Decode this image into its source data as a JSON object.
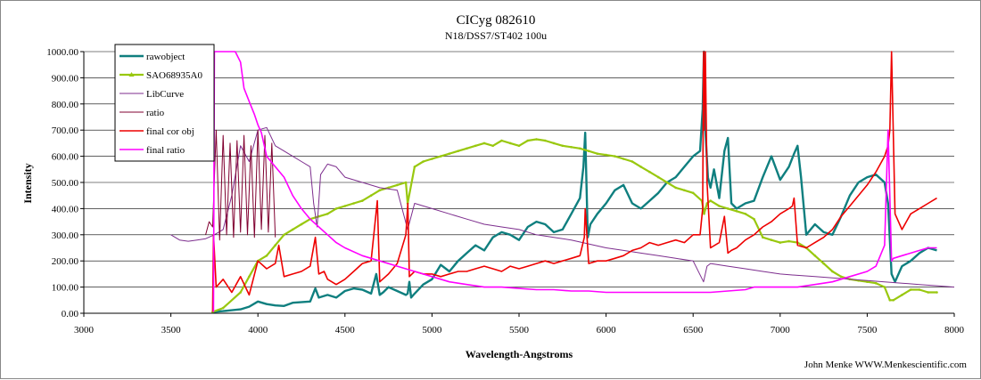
{
  "chart_data": {
    "type": "line",
    "title": "CICyg 082610",
    "subtitle": "N18/DSS7/ST402 100u",
    "xlabel": "Wavelength-Angstroms",
    "ylabel": "Intensity",
    "xlim": [
      3000,
      8000
    ],
    "ylim": [
      0,
      1000
    ],
    "x_ticks": [
      "3000",
      "3500",
      "4000",
      "4500",
      "5000",
      "5500",
      "6000",
      "6500",
      "7000",
      "7500",
      "8000"
    ],
    "y_ticks": [
      "0.00",
      "100.00",
      "200.00",
      "300.00",
      "400.00",
      "500.00",
      "600.00",
      "700.00",
      "800.00",
      "900.00",
      "1000.00"
    ],
    "grid": "horizontal",
    "legend_position": "top-left",
    "credit": "John Menke  WWW.Menkescientific.com",
    "series": [
      {
        "name": "rawobject",
        "color": "#0f7f7f",
        "x": [
          3740,
          3800,
          3900,
          3950,
          4000,
          4050,
          4100,
          4150,
          4200,
          4300,
          4330,
          4350,
          4400,
          4450,
          4500,
          4550,
          4600,
          4650,
          4680,
          4700,
          4720,
          4750,
          4800,
          4850,
          4860,
          4870,
          4880,
          4900,
          4950,
          5000,
          5050,
          5100,
          5150,
          5200,
          5250,
          5300,
          5350,
          5400,
          5450,
          5500,
          5550,
          5600,
          5650,
          5700,
          5750,
          5800,
          5850,
          5870,
          5880,
          5895,
          5910,
          5950,
          6000,
          6050,
          6100,
          6150,
          6200,
          6250,
          6300,
          6350,
          6400,
          6450,
          6500,
          6540,
          6555,
          6562,
          6570,
          6585,
          6600,
          6620,
          6650,
          6680,
          6700,
          6720,
          6750,
          6800,
          6850,
          6900,
          6950,
          7000,
          7050,
          7080,
          7100,
          7120,
          7150,
          7200,
          7250,
          7300,
          7350,
          7400,
          7450,
          7500,
          7550,
          7600,
          7620,
          7640,
          7660,
          7700,
          7750,
          7800,
          7850,
          7900
        ],
        "y": [
          5,
          8,
          15,
          25,
          45,
          35,
          30,
          28,
          40,
          45,
          95,
          60,
          70,
          60,
          85,
          95,
          90,
          75,
          150,
          70,
          80,
          100,
          85,
          70,
          75,
          120,
          60,
          75,
          110,
          130,
          185,
          160,
          200,
          230,
          260,
          240,
          290,
          310,
          300,
          280,
          330,
          350,
          340,
          310,
          320,
          380,
          440,
          560,
          690,
          290,
          340,
          380,
          420,
          470,
          490,
          420,
          400,
          430,
          460,
          500,
          520,
          560,
          600,
          620,
          780,
          1000,
          700,
          520,
          480,
          550,
          440,
          620,
          670,
          420,
          400,
          420,
          430,
          520,
          600,
          510,
          560,
          610,
          640,
          520,
          300,
          340,
          310,
          300,
          370,
          450,
          500,
          520,
          530,
          500,
          420,
          150,
          120,
          180,
          200,
          230,
          250,
          240
        ]
      },
      {
        "name": "SAO68935A0",
        "color": "#99c80f",
        "x": [
          3740,
          3800,
          3900,
          3950,
          4000,
          4050,
          4100,
          4150,
          4200,
          4250,
          4300,
          4350,
          4400,
          4450,
          4500,
          4550,
          4600,
          4650,
          4700,
          4750,
          4800,
          4850,
          4860,
          4900,
          4950,
          5000,
          5050,
          5100,
          5150,
          5200,
          5250,
          5300,
          5350,
          5400,
          5450,
          5500,
          5550,
          5600,
          5650,
          5700,
          5750,
          5800,
          5850,
          5900,
          5950,
          6000,
          6050,
          6100,
          6150,
          6200,
          6250,
          6300,
          6350,
          6400,
          6450,
          6500,
          6550,
          6563,
          6580,
          6600,
          6650,
          6700,
          6750,
          6800,
          6850,
          6900,
          6950,
          7000,
          7050,
          7100,
          7150,
          7200,
          7250,
          7300,
          7350,
          7400,
          7450,
          7500,
          7550,
          7600,
          7630,
          7650,
          7700,
          7750,
          7800,
          7850,
          7900
        ],
        "y": [
          5,
          20,
          80,
          140,
          200,
          220,
          260,
          300,
          320,
          340,
          360,
          370,
          380,
          400,
          410,
          420,
          430,
          450,
          470,
          480,
          490,
          500,
          420,
          560,
          580,
          590,
          600,
          610,
          620,
          630,
          640,
          650,
          640,
          660,
          650,
          640,
          660,
          665,
          660,
          650,
          640,
          635,
          630,
          620,
          610,
          605,
          600,
          590,
          580,
          560,
          540,
          520,
          500,
          480,
          470,
          460,
          430,
          380,
          420,
          430,
          410,
          400,
          390,
          380,
          360,
          290,
          280,
          270,
          275,
          270,
          250,
          220,
          190,
          160,
          140,
          130,
          125,
          120,
          115,
          100,
          50,
          50,
          70,
          90,
          90,
          80,
          80
        ]
      },
      {
        "name": "LibCurve",
        "color": "#7d2e8e",
        "x": [
          3500,
          3550,
          3600,
          3650,
          3700,
          3750,
          3800,
          3850,
          3900,
          3950,
          4000,
          4050,
          4100,
          4150,
          4200,
          4250,
          4300,
          4320,
          4340,
          4360,
          4400,
          4450,
          4500,
          4600,
          4700,
          4800,
          4860,
          4900,
          5000,
          5100,
          5200,
          5300,
          5400,
          5500,
          5600,
          5700,
          5800,
          5900,
          6000,
          6100,
          6200,
          6300,
          6400,
          6500,
          6560,
          6580,
          6600,
          6700,
          6800,
          6900,
          7000,
          7100,
          7200,
          7300,
          7400,
          7500,
          7600,
          7700,
          7800,
          7900,
          8000
        ],
        "y": [
          300,
          280,
          275,
          280,
          285,
          300,
          320,
          450,
          640,
          580,
          700,
          710,
          640,
          620,
          600,
          580,
          560,
          420,
          330,
          530,
          570,
          560,
          520,
          500,
          480,
          470,
          320,
          420,
          400,
          380,
          360,
          340,
          330,
          320,
          300,
          290,
          280,
          265,
          250,
          240,
          230,
          220,
          210,
          200,
          120,
          180,
          190,
          180,
          170,
          160,
          150,
          145,
          140,
          135,
          130,
          125,
          120,
          115,
          110,
          105,
          100
        ]
      },
      {
        "name": "ratio",
        "color": "#800030",
        "x": [
          3700,
          3720,
          3740,
          3760,
          3780,
          3800,
          3820,
          3840,
          3860,
          3880,
          3900,
          3920,
          3940,
          3960,
          3980,
          4000,
          4020,
          4040,
          4060,
          4080,
          4100
        ],
        "y": [
          300,
          350,
          330,
          700,
          280,
          680,
          300,
          650,
          290,
          660,
          310,
          680,
          300,
          640,
          290,
          700,
          320,
          680,
          310,
          650,
          290
        ]
      },
      {
        "name": "final cor obj",
        "color": "#ee0000",
        "x": [
          3740,
          3745,
          3760,
          3800,
          3850,
          3900,
          3950,
          4000,
          4050,
          4100,
          4120,
          4150,
          4200,
          4250,
          4300,
          4330,
          4350,
          4380,
          4400,
          4450,
          4500,
          4550,
          4600,
          4650,
          4686,
          4700,
          4750,
          4800,
          4850,
          4861,
          4870,
          4900,
          4950,
          5000,
          5050,
          5100,
          5150,
          5200,
          5250,
          5300,
          5350,
          5400,
          5450,
          5500,
          5550,
          5600,
          5650,
          5700,
          5750,
          5800,
          5850,
          5875,
          5880,
          5900,
          5950,
          6000,
          6050,
          6100,
          6150,
          6200,
          6250,
          6300,
          6350,
          6400,
          6450,
          6500,
          6540,
          6555,
          6560,
          6563,
          6570,
          6580,
          6600,
          6650,
          6680,
          6700,
          6720,
          6750,
          6800,
          6850,
          6900,
          6950,
          7000,
          7050,
          7070,
          7080,
          7100,
          7150,
          7200,
          7250,
          7300,
          7350,
          7400,
          7450,
          7500,
          7550,
          7600,
          7620,
          7630,
          7640,
          7660,
          7700,
          7750,
          7800,
          7850,
          7900
        ],
        "y": [
          5,
          300,
          100,
          130,
          80,
          140,
          70,
          200,
          170,
          190,
          260,
          140,
          150,
          160,
          180,
          290,
          150,
          160,
          130,
          110,
          130,
          160,
          190,
          200,
          430,
          120,
          150,
          190,
          300,
          420,
          140,
          160,
          150,
          150,
          140,
          150,
          160,
          160,
          170,
          180,
          170,
          160,
          180,
          170,
          180,
          190,
          200,
          190,
          200,
          210,
          220,
          290,
          400,
          190,
          200,
          200,
          210,
          220,
          240,
          250,
          270,
          260,
          270,
          280,
          270,
          300,
          300,
          400,
          1000,
          700,
          1000,
          500,
          250,
          270,
          370,
          230,
          240,
          250,
          280,
          300,
          330,
          350,
          380,
          400,
          410,
          440,
          260,
          250,
          270,
          290,
          320,
          370,
          410,
          450,
          490,
          540,
          600,
          640,
          700,
          1000,
          380,
          320,
          380,
          400,
          420,
          440
        ]
      },
      {
        "name": "final ratio",
        "color": "#ff00ff",
        "x": [
          3745,
          3750,
          3800,
          3850,
          3870,
          3900,
          3920,
          3950,
          3980,
          4000,
          4020,
          4050,
          4100,
          4150,
          4200,
          4250,
          4300,
          4350,
          4400,
          4450,
          4500,
          4600,
          4700,
          4800,
          4900,
          5000,
          5100,
          5200,
          5300,
          5400,
          5500,
          5600,
          5700,
          5800,
          5900,
          6000,
          6100,
          6200,
          6300,
          6400,
          6500,
          6600,
          6700,
          6800,
          6850,
          6900,
          7000,
          7100,
          7200,
          7300,
          7400,
          7500,
          7550,
          7600,
          7620,
          7640,
          7650,
          7700,
          7750,
          7800,
          7850,
          7900
        ],
        "y": [
          5,
          1000,
          1000,
          1000,
          1000,
          960,
          860,
          810,
          760,
          720,
          690,
          600,
          560,
          520,
          450,
          400,
          360,
          330,
          300,
          270,
          250,
          220,
          200,
          180,
          160,
          140,
          120,
          110,
          100,
          100,
          95,
          90,
          90,
          85,
          85,
          80,
          80,
          80,
          80,
          80,
          80,
          80,
          85,
          90,
          100,
          100,
          100,
          100,
          110,
          120,
          140,
          160,
          180,
          260,
          700,
          200,
          210,
          220,
          230,
          240,
          250,
          250
        ]
      }
    ]
  }
}
